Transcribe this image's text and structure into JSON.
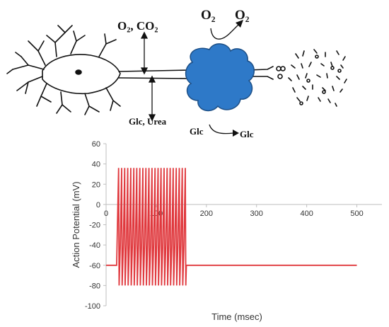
{
  "diagram": {
    "labels": {
      "o2_co2": "O₂, CO₂",
      "glc_urea": "Glc, Urea",
      "o2_left": "O₂",
      "o2_right": "O₂",
      "glc_left": "Glc",
      "glc_right": "Glc"
    },
    "colors": {
      "cell_fill": "#2e79c8",
      "cell_stroke": "#1d4f86",
      "ink": "#111111"
    }
  },
  "chart_data": {
    "type": "line",
    "xlabel": "Time (msec)",
    "ylabel": "Action Potential (mV)",
    "xlim": [
      0,
      550
    ],
    "ylim": [
      -100,
      60
    ],
    "xticks": [
      0,
      100,
      200,
      300,
      400,
      500
    ],
    "yticks": [
      60,
      40,
      20,
      0,
      -20,
      -40,
      -60,
      -80,
      -100
    ],
    "grid": false,
    "series": [
      {
        "color": "#e0393e",
        "rest_potential": -60,
        "spike_train": {
          "start": 25,
          "end": 158,
          "count": 23,
          "peak": 36,
          "trough": -80,
          "plateau": -40
        },
        "x_end": 500
      }
    ]
  }
}
